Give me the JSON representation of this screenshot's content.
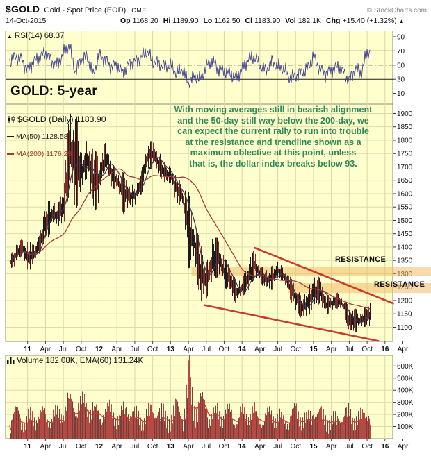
{
  "header": {
    "symbol": "$GOLD",
    "description": "Gold - Spot Price (EOD)",
    "exchange": "CME",
    "brand": "© StockCharts.com",
    "date": "14-Oct-2015",
    "quote": {
      "items": [
        {
          "label": "Op",
          "value": "1168.20"
        },
        {
          "label": "Hi",
          "value": "1189.90"
        },
        {
          "label": "Lo",
          "value": "1162.50"
        },
        {
          "label": "Cl",
          "value": "1183.90"
        },
        {
          "label": "Vol",
          "value": "182.1K"
        },
        {
          "label": "Chg",
          "value": "+15.40 (+1.32%)"
        }
      ],
      "change_direction": "▲"
    }
  },
  "title": "GOLD: 5-year",
  "rsi_legend": {
    "text": "RSI(14) 68.37"
  },
  "price_legend": {
    "line1": "$GOLD (Daily) 1183.90",
    "line2": "MA(50) 1128.58",
    "line3": "MA(200) 1176.29"
  },
  "volume_legend": {
    "text": "Volume 182.08K, EMA(60) 131.24K"
  },
  "annotation": {
    "text": "With moving averages still in bearish alignment\nand the 50-day still way below the 200-day, we\ncan expect the current rally to run into trouble\nat the resistance and trendline shown as a\nmaximum oblective at this point, unless\nthat is, the dollar index breaks below 93."
  },
  "labels": {
    "resistance1": "RESISTANCE",
    "resistance2": "RESISTANCE"
  },
  "chart_data": {
    "type": "multi-pane: rsi line + daily candlestick with moving averages + volume bars",
    "symbol": "$GOLD",
    "period": "Oct 2010 - 14 Oct 2015 (5-year daily)",
    "x_axis": {
      "start_month": "2010-10",
      "months_total": 66,
      "tick_labels": [
        "11",
        "Apr",
        "Jul",
        "Oct",
        "12",
        "Apr",
        "Jul",
        "Oct",
        "13",
        "Apr",
        "Jul",
        "Oct",
        "14",
        "Apr",
        "Jul",
        "Oct",
        "15",
        "Apr",
        "Jul",
        "Oct",
        "16",
        "Apr"
      ],
      "tick_month_index": [
        3,
        6,
        9,
        12,
        15,
        18,
        21,
        24,
        27,
        30,
        33,
        36,
        39,
        42,
        45,
        48,
        51,
        54,
        57,
        60,
        63,
        66
      ]
    },
    "rsi_pane": {
      "indicator": "RSI(14)",
      "current": 68.37,
      "overbought_level": 70,
      "mid_level": 50,
      "oversold_level": 30,
      "ticks": [
        90,
        70,
        50,
        30,
        10
      ],
      "monthly_values": [
        55,
        62,
        58,
        42,
        55,
        60,
        68,
        55,
        50,
        66,
        78,
        40,
        58,
        62,
        35,
        64,
        58,
        48,
        50,
        38,
        52,
        55,
        60,
        70,
        55,
        52,
        48,
        50,
        38,
        45,
        25,
        35,
        30,
        48,
        58,
        45,
        42,
        38,
        32,
        45,
        58,
        62,
        50,
        42,
        55,
        48,
        45,
        32,
        35,
        40,
        45,
        62,
        45,
        38,
        42,
        48,
        40,
        28,
        45,
        38,
        68
      ]
    },
    "price_pane": {
      "type": "candlestick",
      "last_close": 1183.9,
      "ma50_current": 1128.58,
      "ma200_current": 1176.29,
      "y_ticks": [
        1900,
        1850,
        1800,
        1750,
        1700,
        1650,
        1600,
        1550,
        1500,
        1450,
        1400,
        1350,
        1300,
        1250,
        1200,
        1150,
        1100
      ],
      "monthly": {
        "close": [
          1346,
          1385,
          1410,
          1327,
          1400,
          1430,
          1560,
          1535,
          1500,
          1630,
          1825,
          1622,
          1720,
          1745,
          1565,
          1740,
          1720,
          1670,
          1665,
          1560,
          1600,
          1615,
          1650,
          1775,
          1720,
          1715,
          1675,
          1660,
          1580,
          1595,
          1470,
          1390,
          1235,
          1310,
          1395,
          1330,
          1325,
          1250,
          1205,
          1245,
          1325,
          1285,
          1290,
          1250,
          1325,
          1285,
          1285,
          1210,
          1170,
          1175,
          1185,
          1280,
          1215,
          1185,
          1180,
          1190,
          1170,
          1095,
          1135,
          1115,
          1184
        ],
        "high": [
          1365,
          1410,
          1430,
          1420,
          1415,
          1445,
          1570,
          1575,
          1555,
          1635,
          1915,
          1923,
          1755,
          1805,
          1765,
          1748,
          1790,
          1720,
          1685,
          1680,
          1640,
          1630,
          1680,
          1790,
          1800,
          1755,
          1725,
          1695,
          1680,
          1615,
          1605,
          1490,
          1420,
          1340,
          1435,
          1435,
          1360,
          1330,
          1270,
          1280,
          1345,
          1392,
          1330,
          1315,
          1330,
          1345,
          1320,
          1290,
          1255,
          1210,
          1240,
          1307,
          1285,
          1225,
          1215,
          1230,
          1205,
          1175,
          1170,
          1155,
          1190
        ],
        "low": [
          1320,
          1330,
          1370,
          1310,
          1325,
          1380,
          1415,
          1465,
          1480,
          1480,
          1610,
          1532,
          1600,
          1665,
          1525,
          1560,
          1700,
          1625,
          1610,
          1525,
          1545,
          1555,
          1590,
          1690,
          1695,
          1670,
          1635,
          1640,
          1555,
          1560,
          1320,
          1340,
          1180,
          1205,
          1275,
          1290,
          1250,
          1225,
          1185,
          1215,
          1235,
          1280,
          1265,
          1240,
          1240,
          1280,
          1270,
          1205,
          1160,
          1130,
          1140,
          1165,
          1190,
          1140,
          1165,
          1170,
          1160,
          1072,
          1080,
          1098,
          1104
        ]
      },
      "trendlines": [
        {
          "name": "upper-downtrend",
          "from": [
            41.0,
            1398
          ],
          "to": [
            64.5,
            1188
          ]
        },
        {
          "name": "lower-downtrend",
          "from": [
            32.6,
            1183
          ],
          "to": [
            62.0,
            1048
          ]
        }
      ],
      "resistance_bands": [
        {
          "name": "resistance-1300",
          "start_month": 30.5,
          "price_low": 1291,
          "price_high": 1326
        },
        {
          "name": "resistance-1240",
          "start_month": 46.8,
          "price_low": 1228,
          "price_high": 1265
        }
      ]
    },
    "volume_pane": {
      "type": "bar",
      "current_k": 182.08,
      "ema60_k": 131.24,
      "y_tick_labels": [
        "600K",
        "500K",
        "400K",
        "300K",
        "200K",
        "100K"
      ],
      "monthly_avg_k": [
        150,
        170,
        140,
        160,
        150,
        165,
        155,
        185,
        160,
        190,
        270,
        290,
        230,
        220,
        230,
        180,
        200,
        185,
        165,
        210,
        190,
        165,
        160,
        200,
        180,
        190,
        185,
        175,
        210,
        165,
        420,
        250,
        240,
        210,
        190,
        185,
        170,
        175,
        160,
        170,
        175,
        180,
        160,
        150,
        170,
        165,
        140,
        160,
        185,
        175,
        150,
        195,
        160,
        175,
        150,
        140,
        150,
        200,
        170,
        150,
        182
      ],
      "spike": {
        "month": 30.2,
        "value_k": 700
      }
    },
    "colors": {
      "plot_bg": "#ffffce",
      "grid": "#d8d8a2",
      "pane_border": "#8b8b6f",
      "rsi_line": "#3a3a90",
      "rsi_level_line": "#1a1a1a",
      "candle_black": "#1c1c1c",
      "candle_red": "#7e2f28",
      "ma50": "#3a3a55",
      "ma200": "#aa3636",
      "trendline": "#c93a2e",
      "resistance_band": "#f2b660",
      "annotation_text": "#2e8b57",
      "title_text": "#333399",
      "volume_bar": "#b54a44",
      "volume_bar_dark": "#73413b",
      "volume_ema": "#cb3434",
      "axis_text": "#111111"
    }
  }
}
